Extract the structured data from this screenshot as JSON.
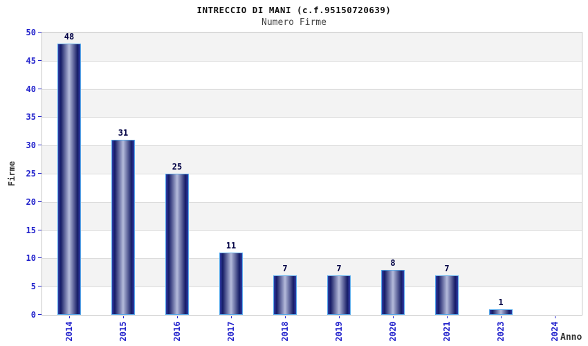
{
  "header": {
    "title": "INTRECCIO DI MANI (c.f.95150720639)",
    "subtitle": "Numero Firme"
  },
  "chart_data": {
    "type": "bar",
    "title": "INTRECCIO DI MANI (c.f.95150720639)",
    "subtitle": "Numero Firme",
    "categories": [
      "2014",
      "2015",
      "2016",
      "2017",
      "2018",
      "2019",
      "2020",
      "2021",
      "2023",
      "2024"
    ],
    "values": [
      48,
      31,
      25,
      11,
      7,
      7,
      8,
      7,
      1,
      0
    ],
    "xlabel": "Anno",
    "ylabel": "Firme",
    "ylim": [
      0,
      50
    ],
    "ytick_step": 5,
    "yticks": [
      0,
      5,
      10,
      15,
      20,
      25,
      30,
      35,
      40,
      45,
      50
    ],
    "grid": "horizontal bands every 5 units alternating light-gray/white with gridlines",
    "legend": "none",
    "bar_value_labels": true,
    "x_label_rotation_deg": -90
  },
  "colors": {
    "background": "#ffffff",
    "title": "#111111",
    "subtitle": "#444444",
    "axis_label": "#333333",
    "tick_label": "#2222cc",
    "value_label": "#000044",
    "bar_edge_border": "#58a9ea",
    "bar_gradient_outer": "#2e3da8",
    "bar_gradient_dark": "#161c66",
    "bar_gradient_center": "#b4bbdb",
    "band_gray": "#f3f3f3",
    "band_white": "#ffffff",
    "grid_line": "#dcdcdc",
    "plot_border": "#c6c6c6"
  }
}
